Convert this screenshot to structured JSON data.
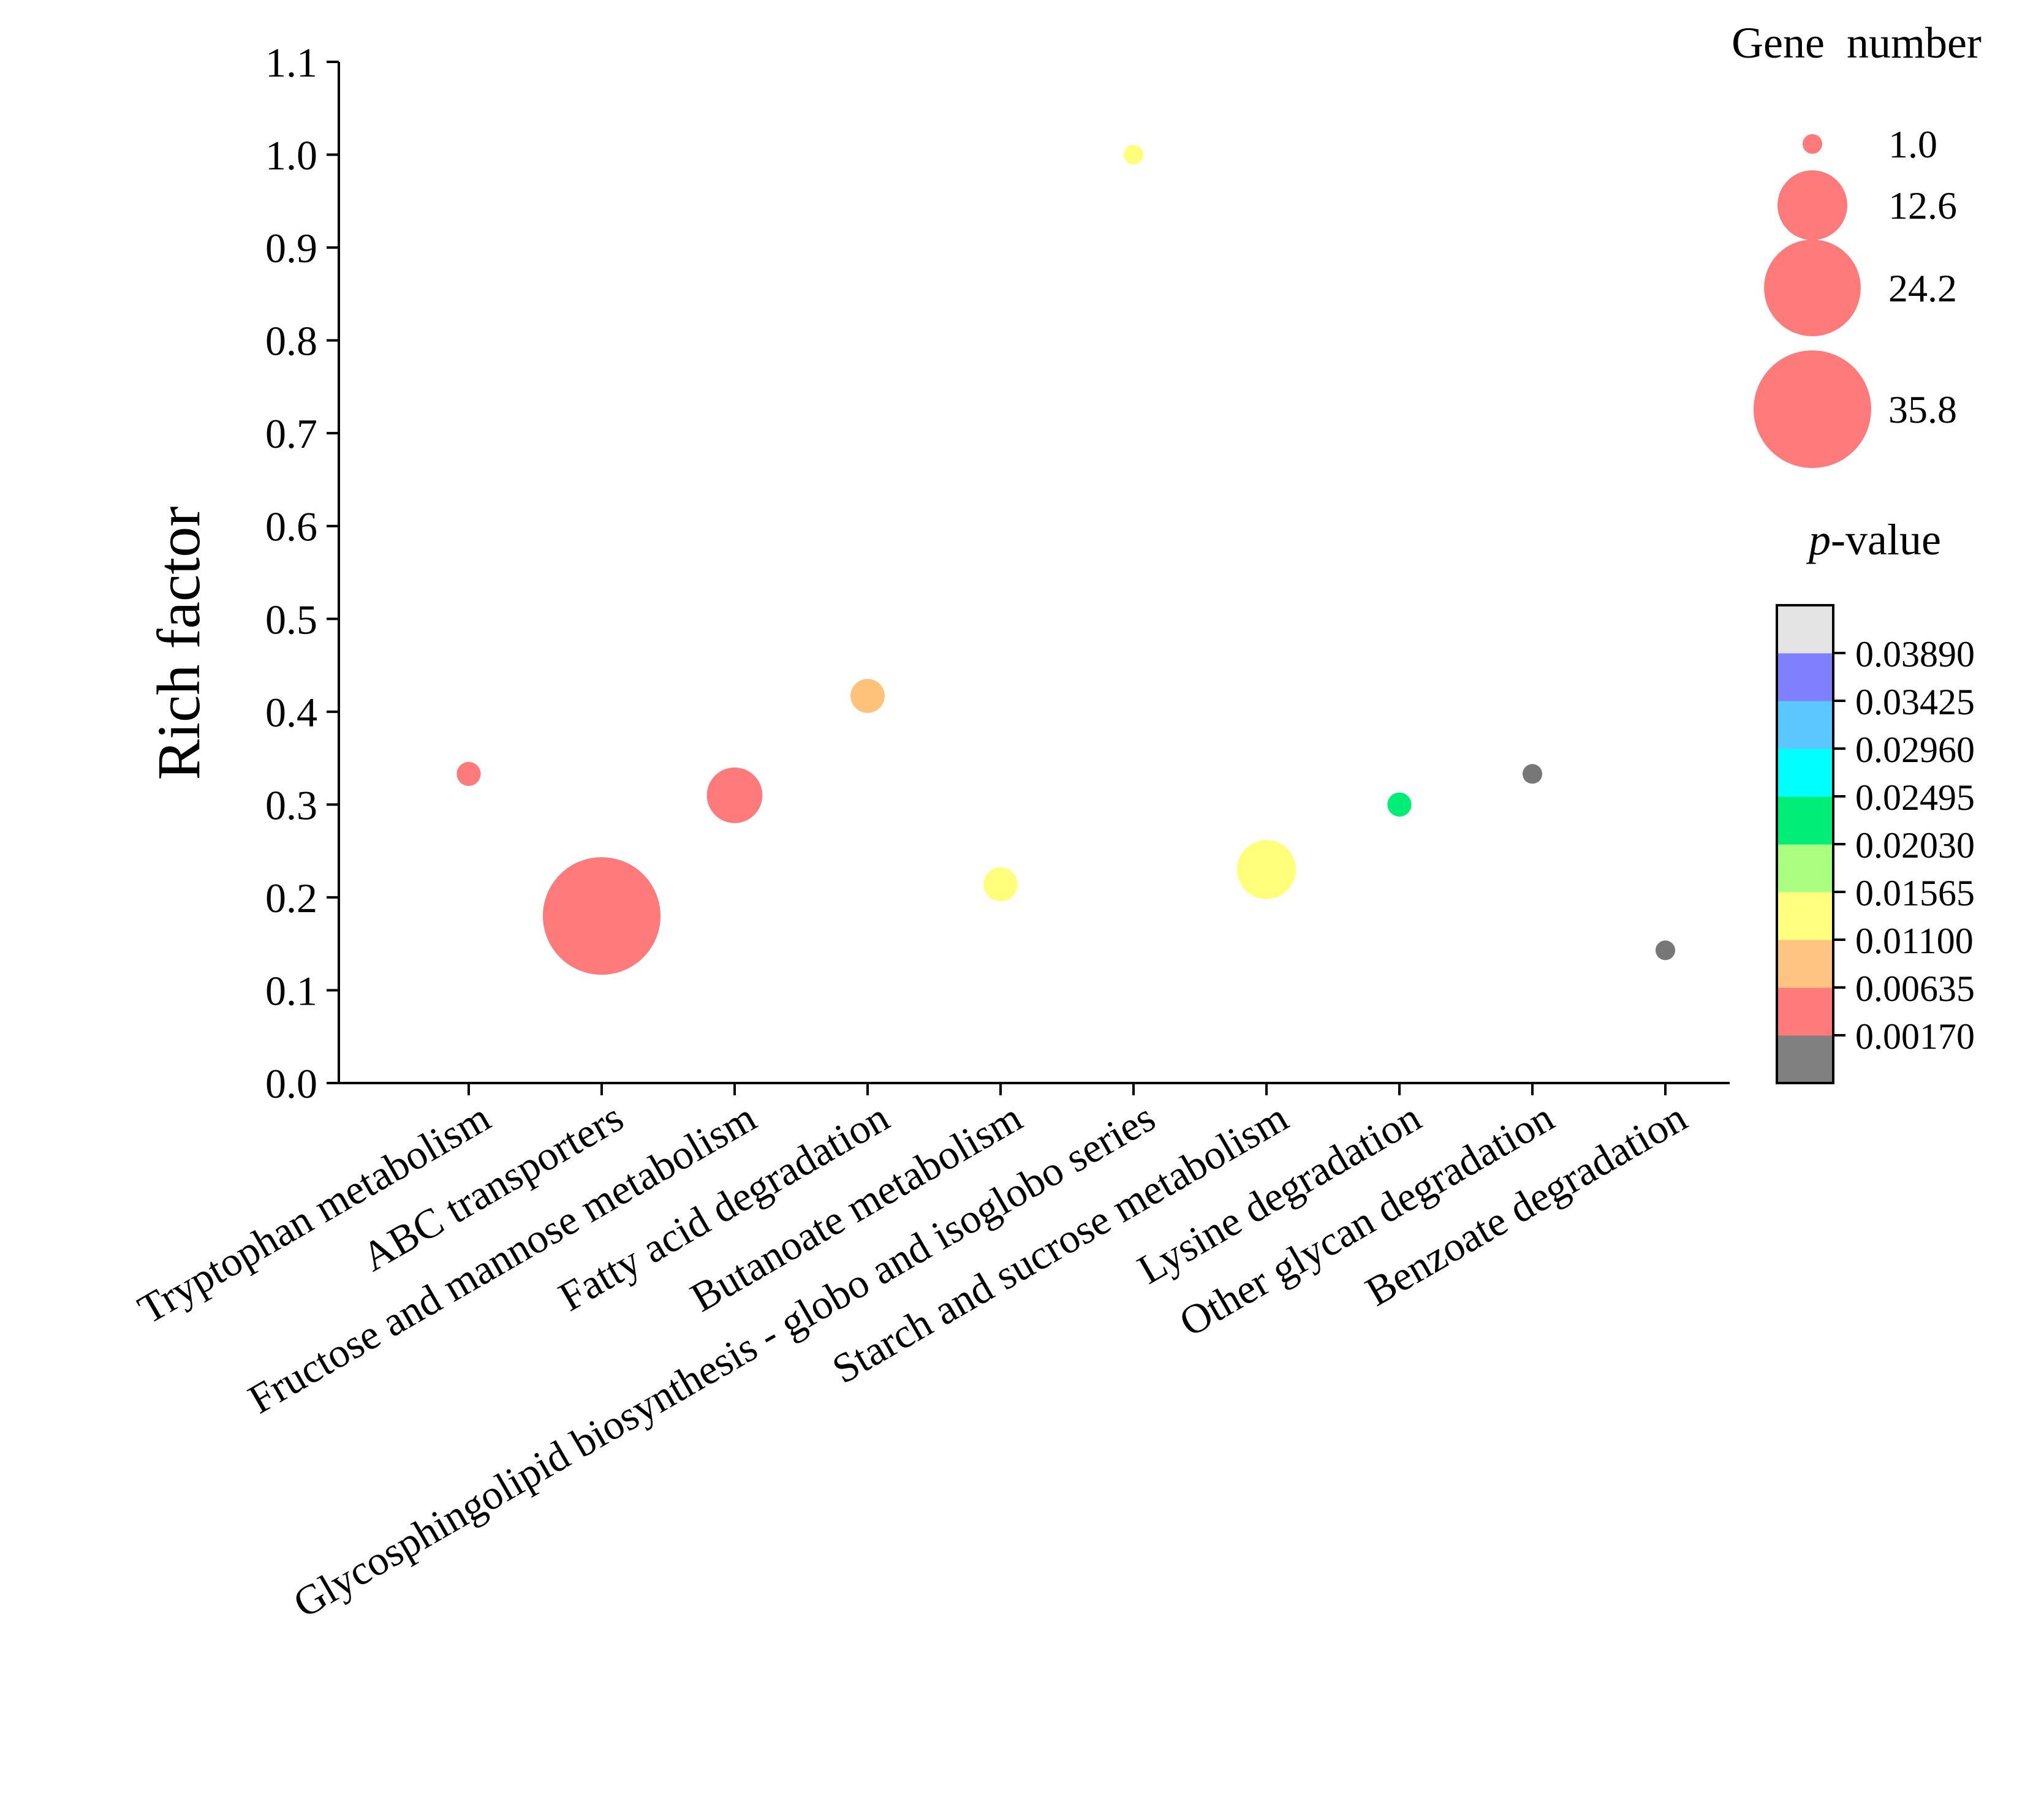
{
  "chart_data": {
    "type": "scatter",
    "subtype": "bubble",
    "title": "",
    "xlabel": "",
    "ylabel": "Rich factor",
    "ylim": [
      0.0,
      1.1
    ],
    "yticks": [
      "0.0",
      "0.1",
      "0.2",
      "0.3",
      "0.4",
      "0.5",
      "0.6",
      "0.7",
      "0.8",
      "0.9",
      "1.0",
      "1.1"
    ],
    "grid": false,
    "categories": [
      "Tryptophan metabolism",
      "ABC transporters",
      "Fructose and mannose metabolism",
      "Fatty acid degradation",
      "Butanoate metabolism",
      "Glycosphingolipid biosynthesis - globo and isoglobo series",
      "Starch and sucrose metabolism",
      "Lysine degradation",
      "Other glycan degradation",
      "Benzoate degradation"
    ],
    "points": [
      {
        "category": "Tryptophan metabolism",
        "rich_factor": 0.333,
        "gene_number": 1.5,
        "color": "#ff7b7b"
      },
      {
        "category": "ABC transporters",
        "rich_factor": 0.18,
        "gene_number": 35.8,
        "color": "#ff7b7b"
      },
      {
        "category": "Fructose and mannose metabolism",
        "rich_factor": 0.31,
        "gene_number": 8,
        "color": "#ff7b7b"
      },
      {
        "category": "Fatty acid degradation",
        "rich_factor": 0.417,
        "gene_number": 3,
        "color": "#ffc27b"
      },
      {
        "category": "Butanoate metabolism",
        "rich_factor": 0.214,
        "gene_number": 3,
        "color": "#ffff7b"
      },
      {
        "category": "Glycosphingolipid biosynthesis - globo and isoglobo series",
        "rich_factor": 1.0,
        "gene_number": 1,
        "color": "#ffff7b"
      },
      {
        "category": "Starch and sucrose metabolism",
        "rich_factor": 0.23,
        "gene_number": 9,
        "color": "#ffff7b"
      },
      {
        "category": "Lysine degradation",
        "rich_factor": 0.3,
        "gene_number": 1.5,
        "color": "#00ee77"
      },
      {
        "category": "Other glycan degradation",
        "rich_factor": 0.333,
        "gene_number": 1,
        "color": "#777777"
      },
      {
        "category": "Benzoate degradation",
        "rich_factor": 0.143,
        "gene_number": 1,
        "color": "#777777"
      }
    ],
    "size_legend": {
      "title": "Gene  number",
      "values": [
        1.0,
        12.6,
        24.2,
        35.8
      ],
      "labels": [
        "1.0",
        "12.6",
        "24.2",
        "35.8"
      ],
      "color": "#ff7b7b"
    },
    "color_legend": {
      "title_italic": "p",
      "title_rest": "-value",
      "labels": [
        "0.03890",
        "0.03425",
        "0.02960",
        "0.02495",
        "0.02030",
        "0.01565",
        "0.01100",
        "0.00635",
        "0.00170"
      ],
      "colors_bottom_to_top": [
        "#808080",
        "#ff7b7b",
        "#ffc481",
        "#ffff80",
        "#aaff80",
        "#00ee77",
        "#00ffff",
        "#5ac8ff",
        "#8080ff",
        "#e4e4e4"
      ]
    }
  }
}
